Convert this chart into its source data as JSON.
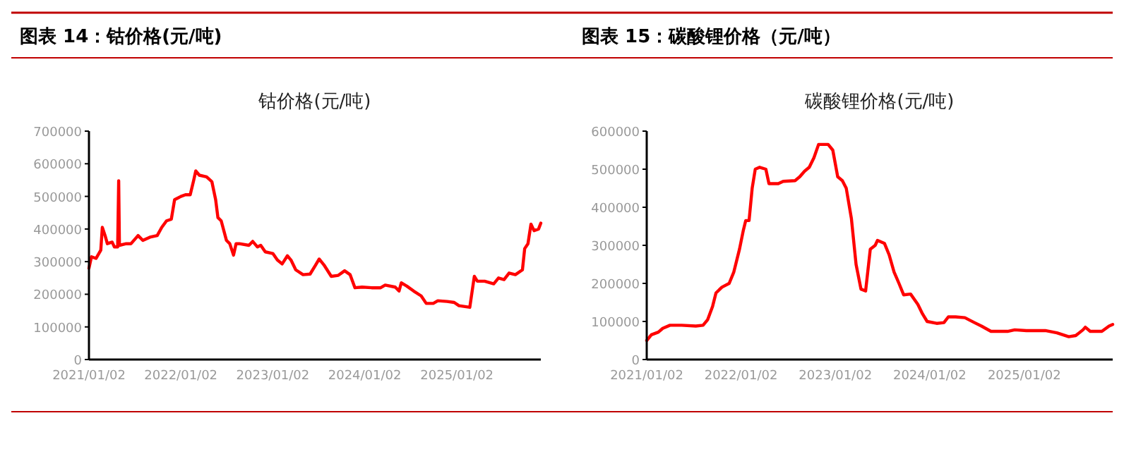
{
  "chart_data": [
    {
      "type": "line",
      "title": "图表 14：钴价格(元/吨)",
      "subtitle": "钴价格(元/吨)",
      "x": [
        "2021-01-02",
        "2021-01-12",
        "2021-01-30",
        "2021-02-18",
        "2021-02-24",
        "2021-03-07",
        "2021-03-16",
        "2021-04-04",
        "2021-04-13",
        "2021-04-26",
        "2021-04-30",
        "2021-05-03",
        "2021-05-30",
        "2021-06-18",
        "2021-07-16",
        "2021-08-04",
        "2021-09-01",
        "2021-09-30",
        "2021-10-18",
        "2021-11-06",
        "2021-11-25",
        "2021-12-08",
        "2022-01-02",
        "2022-01-20",
        "2022-02-08",
        "2022-02-22",
        "2022-03-02",
        "2022-03-16",
        "2022-04-14",
        "2022-05-05",
        "2022-05-20",
        "2022-05-29",
        "2022-06-11",
        "2022-07-02",
        "2022-07-15",
        "2022-07-30",
        "2022-08-09",
        "2022-08-22",
        "2022-09-29",
        "2022-10-14",
        "2022-11-02",
        "2022-11-15",
        "2022-12-03",
        "2023-01-02",
        "2023-01-20",
        "2023-02-08",
        "2023-03-01",
        "2023-03-15",
        "2023-04-03",
        "2023-05-02",
        "2023-05-30",
        "2023-06-21",
        "2023-07-05",
        "2023-07-24",
        "2023-08-22",
        "2023-09-19",
        "2023-10-14",
        "2023-11-05",
        "2023-11-24",
        "2023-12-22",
        "2024-01-29",
        "2024-03-05",
        "2024-03-23",
        "2024-05-02",
        "2024-05-17",
        "2024-05-26",
        "2024-06-17",
        "2024-07-14",
        "2024-08-13",
        "2024-09-02",
        "2024-09-30",
        "2024-10-18",
        "2024-11-24",
        "2024-12-22",
        "2025-01-10",
        "2025-02-22",
        "2025-03-12",
        "2025-03-24",
        "2025-04-22",
        "2025-05-28",
        "2025-06-16",
        "2025-07-08",
        "2025-07-28",
        "2025-08-22",
        "2025-09-19",
        "2025-09-28",
        "2025-10-11",
        "2025-10-23",
        "2025-11-04",
        "2025-11-22",
        "2025-12-01"
      ],
      "series": [
        {
          "color": "#ff0000",
          "values": [
            280000,
            315000,
            310000,
            335000,
            405000,
            380000,
            355000,
            360000,
            345000,
            345000,
            548000,
            350000,
            355000,
            355000,
            380000,
            365000,
            375000,
            380000,
            405000,
            425000,
            430000,
            490000,
            500000,
            505000,
            505000,
            550000,
            578000,
            565000,
            560000,
            545000,
            490000,
            435000,
            425000,
            365000,
            355000,
            320000,
            355000,
            355000,
            350000,
            362000,
            345000,
            350000,
            330000,
            325000,
            305000,
            293000,
            318000,
            305000,
            275000,
            260000,
            262000,
            290000,
            308000,
            290000,
            255000,
            258000,
            272000,
            260000,
            220000,
            222000,
            220000,
            220000,
            228000,
            222000,
            210000,
            235000,
            225000,
            210000,
            195000,
            172000,
            172000,
            180000,
            178000,
            175000,
            165000,
            160000,
            255000,
            240000,
            240000,
            232000,
            250000,
            245000,
            265000,
            260000,
            275000,
            340000,
            355000,
            415000,
            395000,
            400000,
            418000
          ]
        }
      ],
      "xlim": [
        "2021-01-02",
        "2025-12-01"
      ],
      "xticks": [
        {
          "value": "2021-01-02",
          "label": "2021/01/02"
        },
        {
          "value": "2022-01-02",
          "label": "2022/01/02"
        },
        {
          "value": "2023-01-02",
          "label": "2023/01/02"
        },
        {
          "value": "2024-01-02",
          "label": "2024/01/02"
        },
        {
          "value": "2025-01-02",
          "label": "2025/01/02"
        }
      ],
      "ylim": [
        0,
        700000
      ],
      "yticks": [
        0,
        100000,
        200000,
        300000,
        400000,
        500000,
        600000,
        700000
      ]
    },
    {
      "type": "line",
      "title": "图表 15：碳酸锂价格（元/吨）",
      "subtitle": "碳酸锂价格(元/吨)",
      "x": [
        "2021-01-02",
        "2021-01-20",
        "2021-02-16",
        "2021-03-05",
        "2021-04-02",
        "2021-05-17",
        "2021-07-11",
        "2021-08-08",
        "2021-08-26",
        "2021-09-14",
        "2021-09-27",
        "2021-10-20",
        "2021-11-17",
        "2021-12-05",
        "2021-12-27",
        "2022-01-11",
        "2022-01-20",
        "2022-02-02",
        "2022-02-14",
        "2022-02-26",
        "2022-03-15",
        "2022-04-08",
        "2022-04-20",
        "2022-05-26",
        "2022-06-14",
        "2022-07-30",
        "2022-08-17",
        "2022-09-05",
        "2022-09-23",
        "2022-10-11",
        "2022-10-29",
        "2022-12-05",
        "2022-12-23",
        "2023-01-11",
        "2023-01-29",
        "2023-02-13",
        "2023-03-05",
        "2023-03-23",
        "2023-04-11",
        "2023-04-29",
        "2023-05-17",
        "2023-06-05",
        "2023-06-14",
        "2023-07-11",
        "2023-07-29",
        "2023-08-17",
        "2023-09-05",
        "2023-09-23",
        "2023-10-20",
        "2023-11-17",
        "2023-12-05",
        "2023-12-23",
        "2024-01-29",
        "2024-02-26",
        "2024-03-14",
        "2024-04-11",
        "2024-05-17",
        "2024-06-23",
        "2024-07-20",
        "2024-08-26",
        "2024-10-11",
        "2024-10-29",
        "2024-11-26",
        "2025-01-10",
        "2025-02-16",
        "2025-03-24",
        "2025-05-08",
        "2025-06-23",
        "2025-07-20",
        "2025-08-17",
        "2025-08-26",
        "2025-09-14",
        "2025-10-29",
        "2025-11-26",
        "2025-12-10"
      ],
      "series": [
        {
          "color": "#ff0000",
          "values": [
            50000,
            65000,
            72000,
            82000,
            90000,
            90000,
            88000,
            90000,
            105000,
            140000,
            175000,
            190000,
            200000,
            230000,
            290000,
            340000,
            365000,
            365000,
            450000,
            500000,
            505000,
            500000,
            462000,
            462000,
            468000,
            470000,
            480000,
            495000,
            505000,
            530000,
            565000,
            565000,
            550000,
            480000,
            470000,
            450000,
            370000,
            250000,
            185000,
            180000,
            290000,
            300000,
            313000,
            305000,
            275000,
            230000,
            200000,
            170000,
            172000,
            145000,
            120000,
            100000,
            95000,
            97000,
            112000,
            112000,
            110000,
            97000,
            88000,
            74000,
            74000,
            74000,
            78000,
            76000,
            76000,
            76000,
            70000,
            60000,
            63000,
            78000,
            85000,
            74000,
            74000,
            88000,
            92000
          ]
        }
      ],
      "xlim": [
        "2021-01-02",
        "2025-12-10"
      ],
      "xticks": [
        {
          "value": "2021-01-02",
          "label": "2021/01/02"
        },
        {
          "value": "2022-01-02",
          "label": "2022/01/02"
        },
        {
          "value": "2023-01-02",
          "label": "2023/01/02"
        },
        {
          "value": "2024-01-02",
          "label": "2024/01/02"
        },
        {
          "value": "2025-01-02",
          "label": "2025/01/02"
        }
      ],
      "ylim": [
        0,
        600000
      ],
      "yticks": [
        0,
        100000,
        200000,
        300000,
        400000,
        500000,
        600000
      ]
    }
  ]
}
